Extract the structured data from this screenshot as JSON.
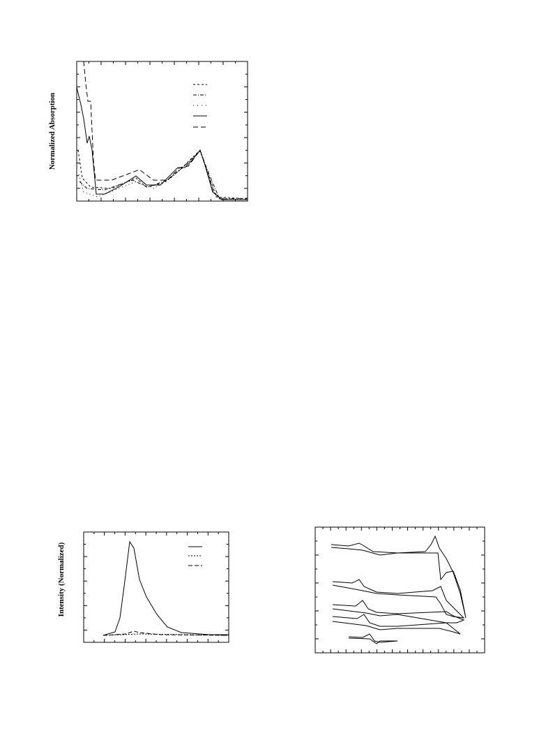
{
  "figures": [
    {
      "y_label": "Normalized Absorption"
    },
    {
      "y_label": "Intensity (Normalized)"
    }
  ]
}
